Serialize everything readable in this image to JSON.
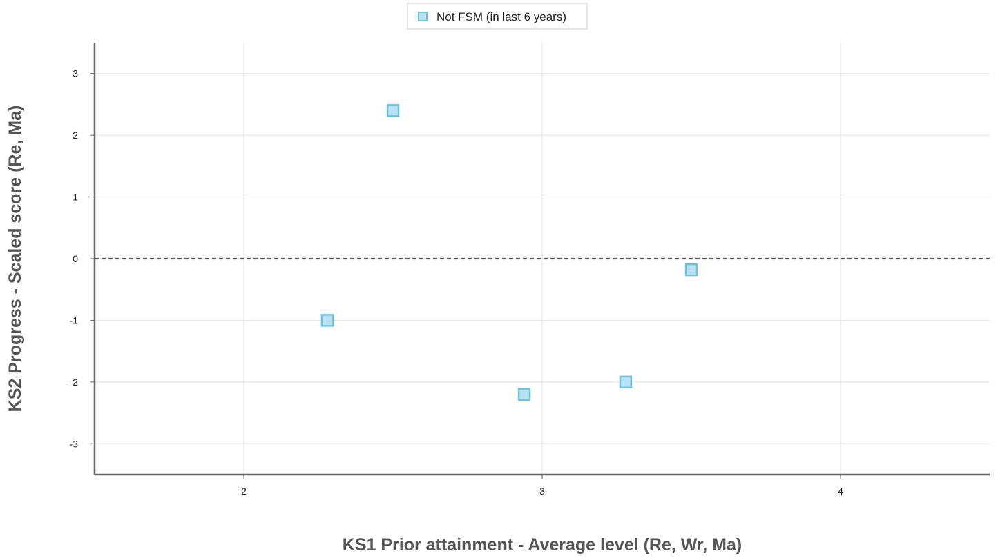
{
  "chart_data": {
    "type": "scatter",
    "title": "",
    "xlabel": "KS1 Prior attainment - Average level (Re, Wr, Ma)",
    "ylabel": "KS2 Progress - Scaled score (Re, Ma)",
    "xlim": [
      1.5,
      4.5
    ],
    "ylim": [
      -3.5,
      3.5
    ],
    "x_ticks": [
      "2",
      "3",
      "4"
    ],
    "y_ticks": [
      "3",
      "2",
      "1",
      "0",
      "-1",
      "-2",
      "-3"
    ],
    "grid": true,
    "reference_line": {
      "y": 0,
      "style": "dashed"
    },
    "legend_position": "top-center",
    "series": [
      {
        "name": "Not FSM (in last 6 years)",
        "color_fill": "#b8e2f2",
        "color_stroke": "#6cc3e0",
        "marker": "square",
        "points": [
          {
            "x": 2.28,
            "y": -1.0
          },
          {
            "x": 2.5,
            "y": 2.4
          },
          {
            "x": 2.94,
            "y": -2.2
          },
          {
            "x": 3.28,
            "y": -2.0
          },
          {
            "x": 3.5,
            "y": -0.18
          }
        ]
      }
    ]
  }
}
